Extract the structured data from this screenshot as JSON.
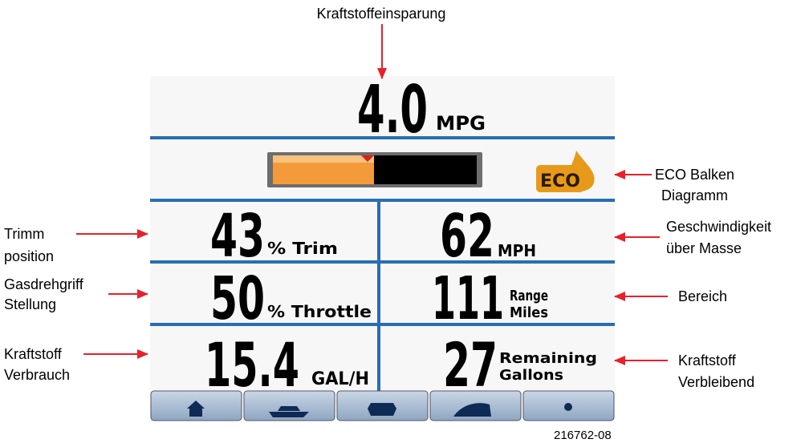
{
  "annotations": {
    "fuel_economy": "Kraftstoffeinsparung",
    "eco_bar": [
      "ECO Balken",
      "Diagramm"
    ],
    "trim": [
      "Trimm",
      "position"
    ],
    "speed": [
      "Geschwindigkeit",
      "über Masse"
    ],
    "throttle": [
      "Gasdrehgriff",
      "Stellung"
    ],
    "range": "Bereich",
    "fuel_flow": [
      "Kraftstoff",
      "Verbrauch"
    ],
    "fuel_remaining": [
      "Kraftstoff",
      "Verbleibend"
    ]
  },
  "display": {
    "economy": {
      "value": "4.0",
      "unit": "MPG"
    },
    "eco_label": "ECO",
    "trim": {
      "value": "43",
      "unit": "% Trim"
    },
    "speed": {
      "value": "62",
      "unit": "MPH"
    },
    "throttle": {
      "value": "50",
      "unit": "% Throttle"
    },
    "range": {
      "value": "111",
      "unit": [
        "Range",
        "Miles"
      ]
    },
    "fuel_flow": {
      "value": "15.4",
      "unit": "GAL/H"
    },
    "fuel_remaining": {
      "value": "27",
      "unit": [
        "Remaining",
        "Gallons"
      ]
    }
  },
  "figure_id": "216762-08"
}
